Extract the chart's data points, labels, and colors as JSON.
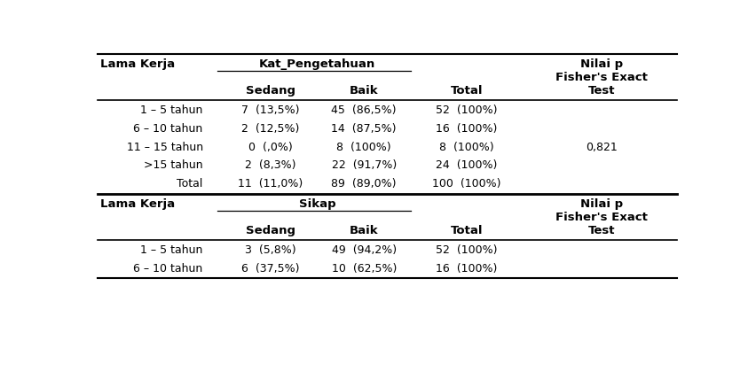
{
  "section1_header_col1": "Lama Kerja",
  "section1_header_col2": "Kat_Pengetahuan",
  "section1_header_nilai_p_line1": "Nilai p",
  "section1_header_nilai_p_line2": "Fisher's Exact",
  "section1_subheader_sedang": "Sedang",
  "section1_subheader_baik": "Baik",
  "section1_subheader_total": "Total",
  "section1_subheader_test": "Test",
  "section1_rows": [
    [
      "1 – 5 tahun",
      "7  (13,5%)",
      "45  (86,5%)",
      "52  (100%)",
      ""
    ],
    [
      "6 – 10 tahun",
      "2  (12,5%)",
      "14  (87,5%)",
      "16  (100%)",
      ""
    ],
    [
      "11 – 15 tahun",
      "0  (,0%)",
      "8  (100%)",
      "8  (100%)",
      "0,821"
    ],
    [
      ">15 tahun",
      "2  (8,3%)",
      "22  (91,7%)",
      "24  (100%)",
      ""
    ],
    [
      "Total",
      "11  (11,0%)",
      "89  (89,0%)",
      "100  (100%)",
      ""
    ]
  ],
  "section2_header_col1": "Lama Kerja",
  "section2_header_col2": "Sikap",
  "section2_header_nilai_p_line1": "Nilai p",
  "section2_header_nilai_p_line2": "Fisher's Exact",
  "section2_subheader_sedang": "Sedang",
  "section2_subheader_baik": "Baik",
  "section2_subheader_total": "Total",
  "section2_subheader_test": "Test",
  "section2_rows": [
    [
      "1 – 5 tahun",
      "3  (5,8%)",
      "49  (94,2%)",
      "52  (100%)",
      ""
    ],
    [
      "6 – 10 tahun",
      "6  (37,5%)",
      "10  (62,5%)",
      "16  (100%)",
      ""
    ]
  ],
  "background_color": "#ffffff",
  "font_size": 9.0,
  "header_font_size": 9.5
}
